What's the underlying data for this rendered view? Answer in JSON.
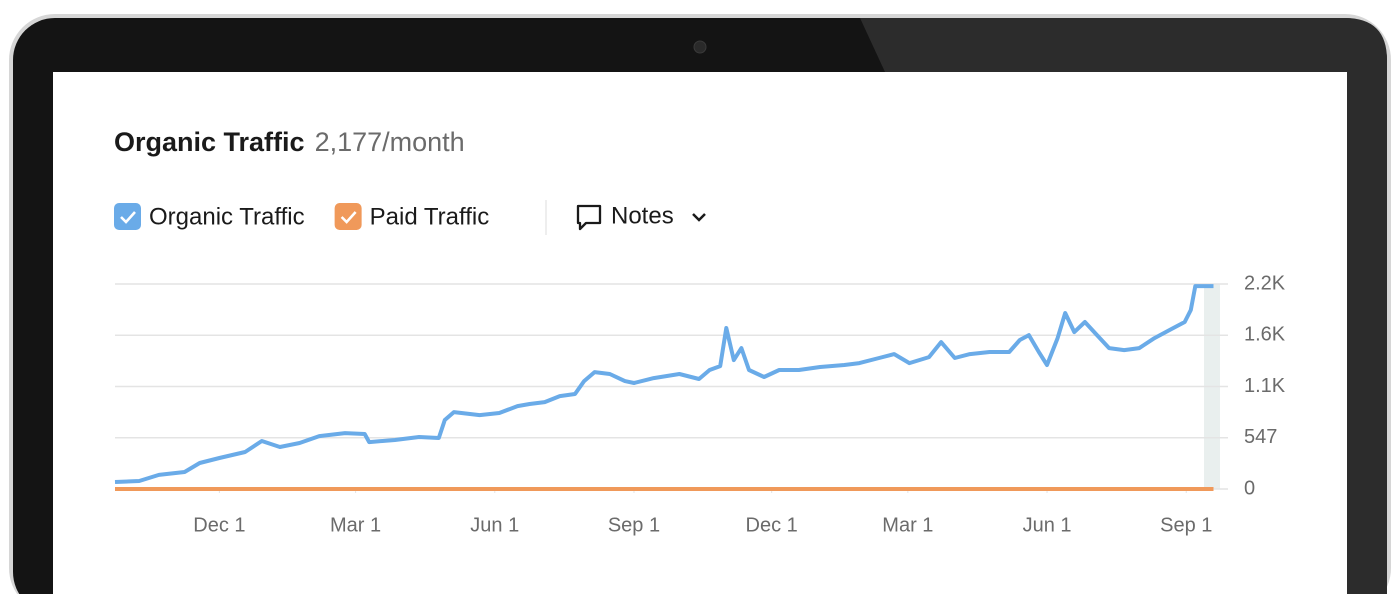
{
  "chart_data": {
    "type": "line",
    "title": "Organic Traffic",
    "subtitle": "2,177/month",
    "x": [
      -69,
      -53,
      -40,
      -23,
      -13,
      0,
      17,
      28,
      40,
      53,
      66,
      83,
      96,
      99,
      116,
      132,
      145,
      149,
      155,
      172,
      185,
      197,
      205,
      215,
      225,
      235,
      241,
      248,
      258,
      268,
      274,
      287,
      304,
      317,
      324,
      331,
      335,
      340,
      345,
      350,
      360,
      370,
      383,
      397,
      413,
      423,
      436,
      446,
      456,
      469,
      477,
      486,
      496,
      509,
      522,
      529,
      535,
      542,
      547,
      554,
      559,
      565,
      572,
      580,
      588,
      598,
      608,
      618,
      628,
      638,
      642,
      645,
      657
    ],
    "series": [
      {
        "name": "Organic Traffic",
        "color": "#6aabe8",
        "values": [
          75,
          85,
          150,
          181,
          277,
          331,
          395,
          512,
          448,
          491,
          565,
          597,
          587,
          501,
          523,
          555,
          544,
          736,
          821,
          789,
          811,
          885,
          907,
          928,
          992,
          1014,
          1152,
          1248,
          1227,
          1152,
          1131,
          1184,
          1227,
          1174,
          1270,
          1312,
          1718,
          1376,
          1504,
          1270,
          1195,
          1270,
          1270,
          1302,
          1323,
          1344,
          1398,
          1440,
          1344,
          1408,
          1568,
          1398,
          1440,
          1462,
          1462,
          1590,
          1643,
          1451,
          1323,
          1611,
          1878,
          1675,
          1782,
          1643,
          1504,
          1483,
          1504,
          1611,
          1697,
          1782,
          1910,
          2166,
          2166
        ]
      },
      {
        "name": "Paid Traffic",
        "color": "#f0995a",
        "values": [
          0,
          0,
          0,
          0,
          0,
          0,
          0,
          0,
          0,
          0,
          0,
          0,
          0,
          0,
          0,
          0,
          0,
          0,
          0,
          0,
          0,
          0,
          0,
          0,
          0,
          0,
          0,
          0,
          0,
          0,
          0,
          0,
          0,
          0,
          0,
          0,
          0,
          0,
          0,
          0,
          0,
          0,
          0,
          0,
          0,
          0,
          0,
          0,
          0,
          0,
          0,
          0,
          0,
          0,
          0,
          0,
          0,
          0,
          0,
          0,
          0,
          0,
          0,
          0,
          0,
          0,
          0,
          0,
          0,
          0,
          0,
          0,
          0
        ]
      }
    ],
    "xlim": [
      -69,
      658
    ],
    "xticks": [
      {
        "value": 0,
        "label": "Dec 1"
      },
      {
        "value": 90,
        "label": "Mar 1"
      },
      {
        "value": 182,
        "label": "Jun 1"
      },
      {
        "value": 274,
        "label": "Sep 1"
      },
      {
        "value": 365,
        "label": "Dec 1"
      },
      {
        "value": 455,
        "label": "Mar 1"
      },
      {
        "value": 547,
        "label": "Jun 1"
      },
      {
        "value": 639,
        "label": "Sep 1"
      }
    ],
    "ylim": [
      0,
      2188
    ],
    "yticks": [
      0,
      547,
      {
        "value": 1094,
        "label": "1.1K"
      },
      {
        "value": 1641,
        "label": "1.6K"
      },
      {
        "value": 2188,
        "label": "2.2K"
      }
    ],
    "grid": true
  },
  "toolbar": {
    "notes": "Notes"
  }
}
